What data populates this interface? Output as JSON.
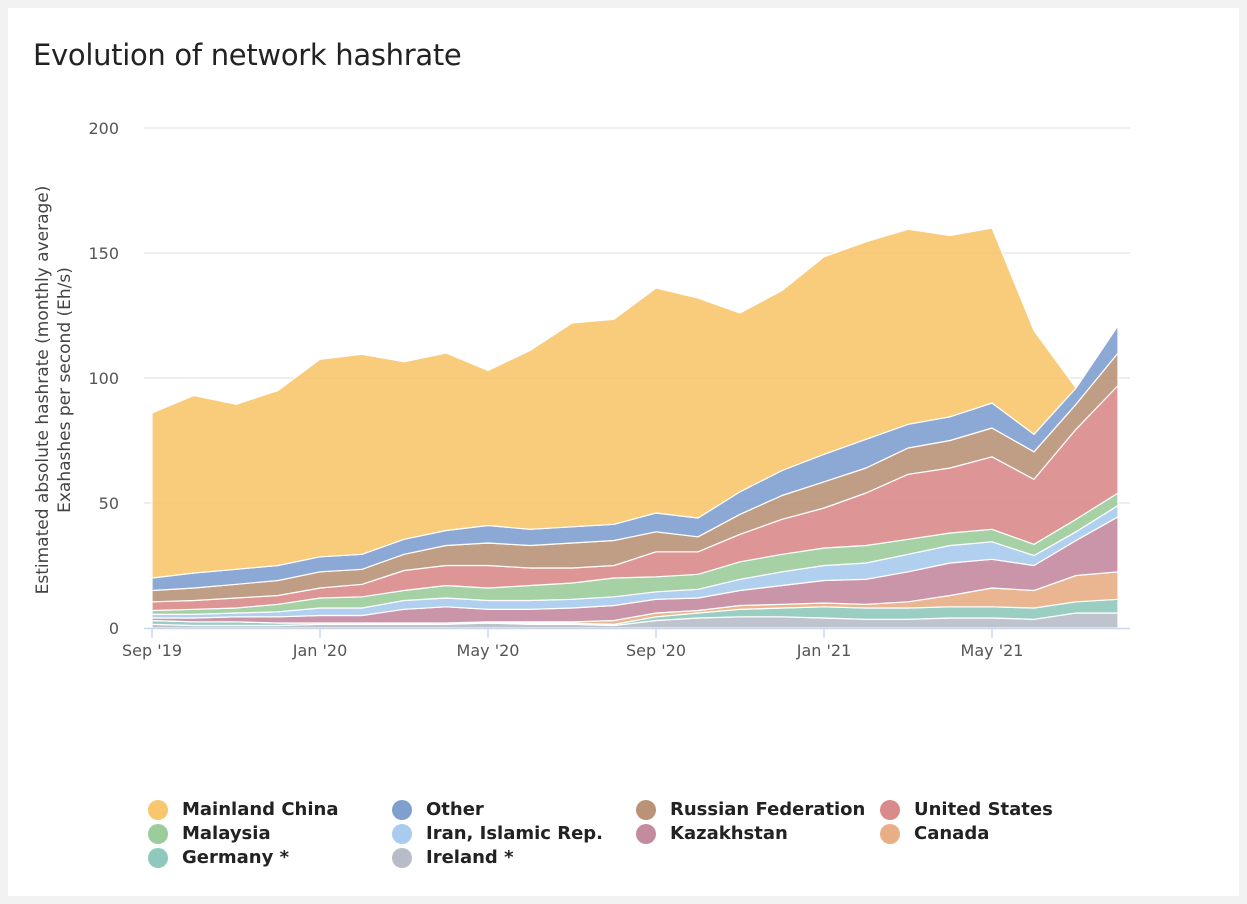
{
  "chart_data": {
    "type": "area",
    "stacked": true,
    "title": "Evolution of network hashrate",
    "ylabel_lines": [
      "Estimated absolute hashrate (monthly average)",
      "Exahashes per second (Eh/s)"
    ],
    "ylim": [
      0,
      200
    ],
    "yticks": [
      0,
      50,
      100,
      150,
      200
    ],
    "grid": true,
    "legend_position": "bottom",
    "x": [
      "2019-09",
      "2019-10",
      "2019-11",
      "2019-12",
      "2020-01",
      "2020-02",
      "2020-03",
      "2020-04",
      "2020-05",
      "2020-06",
      "2020-07",
      "2020-08",
      "2020-09",
      "2020-10",
      "2020-11",
      "2020-12",
      "2021-01",
      "2021-02",
      "2021-03",
      "2021-04",
      "2021-05",
      "2021-06",
      "2021-07",
      "2021-08"
    ],
    "xticks": [
      {
        "index": 0,
        "label": "Sep '19"
      },
      {
        "index": 4,
        "label": "Jan '20"
      },
      {
        "index": 8,
        "label": "May '20"
      },
      {
        "index": 12,
        "label": "Sep '20"
      },
      {
        "index": 16,
        "label": "Jan '21"
      },
      {
        "index": 20,
        "label": "May '21"
      }
    ],
    "series": [
      {
        "name": "Ireland *",
        "color": "#b7bcc8",
        "values": [
          1.5,
          1.0,
          1.0,
          1.0,
          1.5,
          1.5,
          1.5,
          1.5,
          2.0,
          1.5,
          1.5,
          1.0,
          3.0,
          4.0,
          4.5,
          4.5,
          4.0,
          3.5,
          3.5,
          4.0,
          4.0,
          3.5,
          6.0,
          6.0
        ]
      },
      {
        "name": "Germany *",
        "color": "#8fc9bd",
        "values": [
          1.5,
          1.5,
          1.5,
          1.0,
          0.5,
          0.5,
          0.5,
          0.5,
          0.5,
          0.5,
          0.5,
          0.5,
          1.5,
          2.0,
          3.0,
          3.5,
          4.5,
          4.5,
          4.5,
          4.5,
          4.5,
          4.5,
          4.5,
          5.5
        ]
      },
      {
        "name": "Canada",
        "color": "#e8ae85",
        "values": [
          0.0,
          0.0,
          0.0,
          0.0,
          0.0,
          0.0,
          0.0,
          0.0,
          0.0,
          0.5,
          0.5,
          1.5,
          1.5,
          1.0,
          1.5,
          1.5,
          1.5,
          1.5,
          2.5,
          4.5,
          7.5,
          7.0,
          10.5,
          11.0
        ]
      },
      {
        "name": "Kazakhstan",
        "color": "#c48a9e",
        "values": [
          1.0,
          1.5,
          2.0,
          2.5,
          3.0,
          3.0,
          5.5,
          6.5,
          5.0,
          5.0,
          5.5,
          6.0,
          5.5,
          5.0,
          6.0,
          7.5,
          9.0,
          10.0,
          12.0,
          13.0,
          11.5,
          10.0,
          14.0,
          22.0
        ]
      },
      {
        "name": "Iran, Islamic Rep.",
        "color": "#a9cbee",
        "values": [
          1.5,
          1.5,
          1.5,
          2.0,
          3.0,
          3.0,
          3.5,
          3.5,
          3.5,
          3.5,
          3.5,
          3.5,
          3.0,
          3.5,
          4.5,
          5.5,
          6.0,
          6.5,
          7.0,
          7.0,
          7.0,
          4.0,
          3.5,
          4.5
        ]
      },
      {
        "name": "Malaysia",
        "color": "#9ccc9b",
        "values": [
          1.5,
          2.0,
          2.0,
          3.0,
          4.0,
          4.5,
          4.0,
          5.0,
          5.0,
          6.0,
          6.5,
          7.5,
          6.0,
          6.0,
          7.0,
          7.0,
          7.0,
          7.0,
          6.0,
          5.0,
          5.0,
          4.5,
          5.0,
          5.0
        ]
      },
      {
        "name": "United States",
        "color": "#d98a8a",
        "values": [
          3.5,
          3.5,
          4.0,
          3.5,
          4.0,
          5.0,
          8.0,
          8.0,
          9.0,
          7.0,
          6.0,
          5.0,
          10.0,
          9.0,
          11.0,
          14.0,
          16.0,
          21.0,
          26.0,
          26.0,
          29.0,
          26.0,
          36.0,
          43.0
        ]
      },
      {
        "name": "Russian Federation",
        "color": "#b99278",
        "values": [
          4.5,
          5.0,
          5.5,
          6.0,
          6.5,
          6.0,
          6.5,
          8.0,
          9.0,
          9.0,
          10.0,
          10.0,
          8.0,
          6.0,
          8.0,
          9.5,
          10.5,
          10.0,
          10.5,
          11.0,
          11.5,
          11.0,
          10.0,
          13.0
        ]
      },
      {
        "name": "Other",
        "color": "#7f9fcf",
        "values": [
          5.0,
          6.0,
          6.0,
          6.0,
          6.0,
          6.0,
          6.0,
          6.0,
          7.0,
          6.5,
          6.5,
          6.5,
          7.5,
          7.5,
          9.0,
          10.0,
          11.0,
          11.5,
          9.5,
          9.5,
          10.0,
          7.0,
          6.5,
          11.0
        ]
      },
      {
        "name": "Mainland China",
        "color": "#f7c66d",
        "values": [
          66.0,
          71.0,
          66.0,
          70.0,
          79.0,
          80.0,
          71.0,
          71.0,
          62.0,
          71.5,
          81.5,
          82.0,
          90.0,
          88.0,
          71.5,
          72.0,
          79.0,
          79.0,
          78.0,
          72.5,
          70.0,
          41.5,
          0.0,
          0.0
        ]
      }
    ],
    "legend_order": [
      "Mainland China",
      "Other",
      "Russian Federation",
      "United States",
      "Malaysia",
      "Iran, Islamic Rep.",
      "Kazakhstan",
      "Canada",
      "Germany *",
      "Ireland *"
    ]
  }
}
